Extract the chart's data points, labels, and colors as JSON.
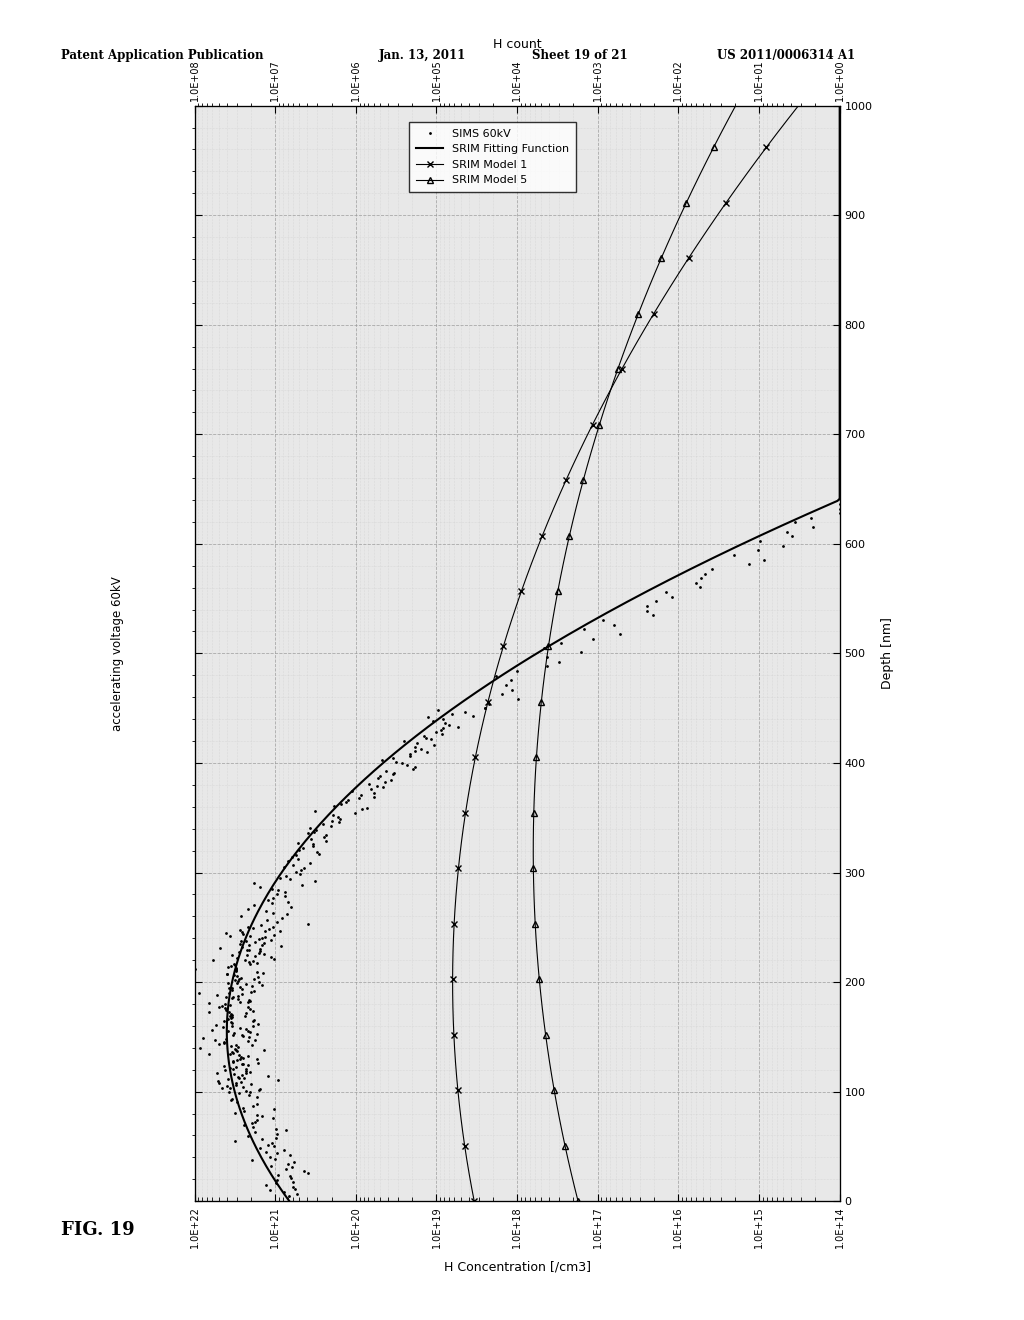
{
  "header_left": "Patent Application Publication",
  "header_mid1": "Jan. 13, 2011",
  "header_mid2": "Sheet 19 of 21",
  "header_right": "US 2011/0006314 A1",
  "fig_label": "FIG. 19",
  "ylabel_depth": "Depth [nm]",
  "xlabel_conc": "H Concentration [/cm3]",
  "xlabel_count": "H count",
  "side_label": "accelerating voltage 60kV",
  "legend_entries": [
    "SIMS 60kV",
    "SRIM Fitting Function",
    "SRIM Model 1",
    "SRIM Model 5"
  ],
  "depth_min": 0,
  "depth_max": 1000,
  "conc_exp_min": 14,
  "conc_exp_max": 22,
  "count_exp_min": 0,
  "count_exp_max": 8,
  "background_color": "#ffffff",
  "plot_bg": "#e8e8e8",
  "grid_major_color": "#999999",
  "grid_minor_color": "#bbbbbb"
}
